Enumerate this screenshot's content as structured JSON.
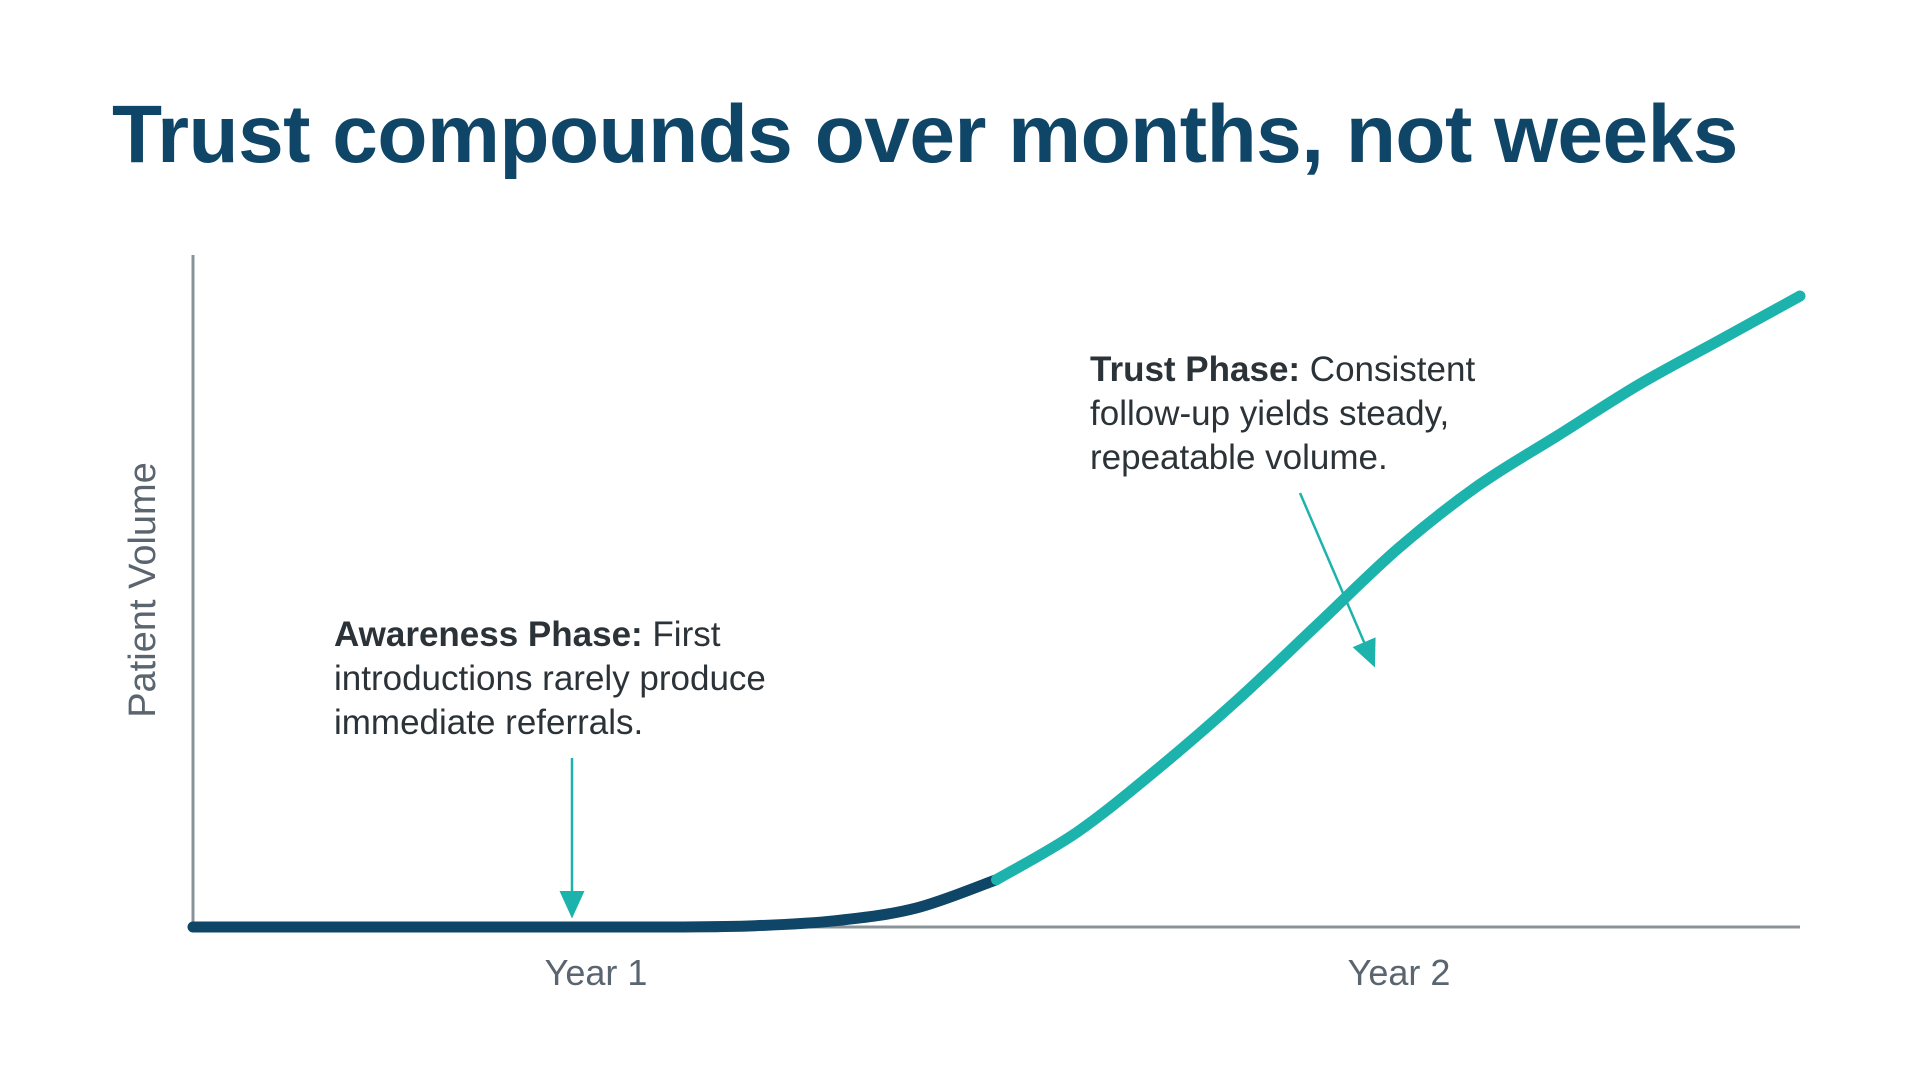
{
  "slide": {
    "title": "Trust compounds over months, not weeks"
  },
  "chart_data": {
    "type": "line",
    "title": "Trust compounds over months, not weeks",
    "xlabel": "",
    "ylabel": "Patient Volume",
    "x_ticks": [
      "Year 1",
      "Year 2"
    ],
    "grid": false,
    "legend": "none",
    "colors": {
      "awareness_segment": "#0f4566",
      "trust_segment": "#1db3ad",
      "axis": "#8a939a",
      "arrow": "#1db3ad"
    },
    "series": [
      {
        "values_note_free": true,
        "x": [
          0,
          0.1,
          0.2,
          0.3,
          0.35,
          0.4,
          0.45,
          0.5,
          0.55,
          0.6,
          0.65,
          0.7,
          0.75,
          0.8,
          0.85,
          0.9,
          0.95,
          1.0
        ],
        "y": [
          0,
          0,
          0,
          0,
          0.002,
          0.01,
          0.03,
          0.075,
          0.15,
          0.25,
          0.36,
          0.48,
          0.6,
          0.7,
          0.78,
          0.86,
          0.93,
          1.0
        ]
      }
    ],
    "phase_split_x": 0.5,
    "annotations": [
      {
        "label": "Awareness Phase:",
        "lines": [
          " First",
          "introductions rarely produce",
          "immediate referrals."
        ]
      },
      {
        "label": "Trust Phase:",
        "lines": [
          " Consistent",
          "follow-up yields steady,",
          "repeatable volume."
        ]
      }
    ]
  }
}
